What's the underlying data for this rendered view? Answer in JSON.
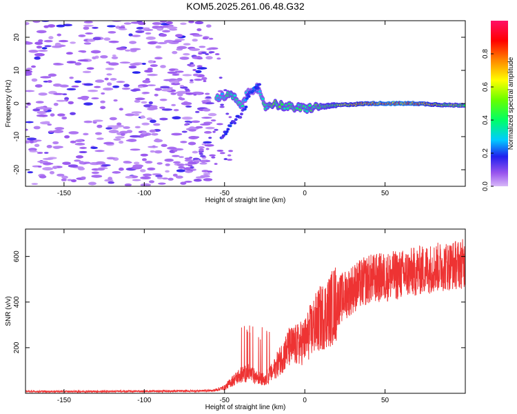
{
  "title": "KOM5.2025.261.06.48.G32",
  "chart_data": [
    {
      "type": "heatmap",
      "xlabel": "Height of straight line (km)",
      "ylabel": "Frequency (Hz)",
      "xlim": [
        -174,
        100
      ],
      "ylim": [
        -25,
        25
      ],
      "xticks": [
        -150,
        -100,
        -50,
        0,
        50
      ],
      "yticks": [
        -20,
        -10,
        0,
        10,
        20
      ],
      "noise_region_x": [
        -174,
        -57
      ],
      "signal_track": [
        {
          "x": -52,
          "f": 2.0,
          "amp": 0.35
        },
        {
          "x": -45,
          "f": 2.5,
          "amp": 0.45
        },
        {
          "x": -40,
          "f": -1.0,
          "amp": 0.35
        },
        {
          "x": -35,
          "f": 3.5,
          "amp": 0.3
        },
        {
          "x": -30,
          "f": 5.0,
          "amp": 0.25
        },
        {
          "x": -25,
          "f": -1.0,
          "amp": 0.4
        },
        {
          "x": -20,
          "f": 0.0,
          "amp": 0.5
        },
        {
          "x": -10,
          "f": -1.0,
          "amp": 0.45
        },
        {
          "x": 0,
          "f": -1.5,
          "amp": 0.45
        },
        {
          "x": 10,
          "f": -1.0,
          "amp": 0.5
        },
        {
          "x": 20,
          "f": -0.5,
          "amp": 0.6
        },
        {
          "x": 40,
          "f": 0.0,
          "amp": 0.8
        },
        {
          "x": 55,
          "f": 0.0,
          "amp": 0.95
        },
        {
          "x": 70,
          "f": 0.0,
          "amp": 0.85
        },
        {
          "x": 90,
          "f": -0.5,
          "amp": 0.6
        }
      ],
      "colorbar": {
        "label": "Normalized spectral amplitude",
        "range": [
          0,
          1
        ],
        "ticks": [
          0.0,
          0.2,
          0.4,
          0.6,
          0.8
        ]
      }
    },
    {
      "type": "line",
      "xlabel": "Height of straight line (km)",
      "ylabel": "SNR (v/v)",
      "xlim": [
        -174,
        100
      ],
      "ylim": [
        0,
        720
      ],
      "xticks": [
        -150,
        -100,
        -50,
        0,
        50
      ],
      "yticks": [
        200,
        400,
        600
      ],
      "color": "#ee3333",
      "series": [
        {
          "name": "SNR",
          "x": [
            -174,
            -140,
            -100,
            -70,
            -57,
            -50,
            -45,
            -40,
            -35,
            -30,
            -25,
            -20,
            -15,
            -10,
            -5,
            0,
            5,
            10,
            15,
            20,
            25,
            30,
            35,
            40,
            50,
            60,
            70,
            80,
            90,
            100
          ],
          "y": [
            8,
            8,
            9,
            10,
            12,
            25,
            55,
            80,
            90,
            70,
            60,
            95,
            150,
            200,
            210,
            230,
            290,
            330,
            360,
            400,
            430,
            460,
            480,
            500,
            510,
            520,
            535,
            550,
            560,
            570
          ]
        }
      ]
    }
  ]
}
